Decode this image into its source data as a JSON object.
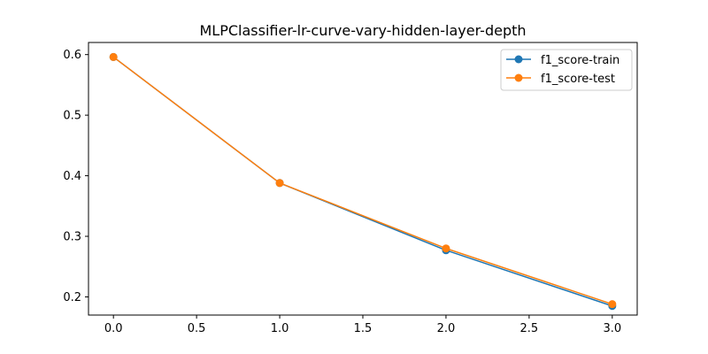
{
  "chart_data": {
    "type": "line",
    "title": "MLPClassifier-lr-curve-vary-hidden-layer-depth",
    "xlabel": "",
    "ylabel": "",
    "x": [
      0.0,
      1.0,
      2.0,
      3.0
    ],
    "xlim": [
      -0.15,
      3.15
    ],
    "ylim": [
      0.17,
      0.62
    ],
    "xticks": [
      0.0,
      0.5,
      1.0,
      1.5,
      2.0,
      2.5,
      3.0
    ],
    "xtick_labels": [
      "0.0",
      "0.5",
      "1.0",
      "1.5",
      "2.0",
      "2.5",
      "3.0"
    ],
    "yticks": [
      0.2,
      0.3,
      0.4,
      0.5,
      0.6
    ],
    "ytick_labels": [
      "0.2",
      "0.3",
      "0.4",
      "0.5",
      "0.6"
    ],
    "grid": false,
    "legend_position": "top-right",
    "series": [
      {
        "name": "f1_score-train",
        "color": "#1f77b4",
        "values": [
          0.596,
          0.388,
          0.277,
          0.185
        ]
      },
      {
        "name": "f1_score-test",
        "color": "#ff7f0e",
        "values": [
          0.596,
          0.388,
          0.28,
          0.188
        ]
      }
    ]
  }
}
